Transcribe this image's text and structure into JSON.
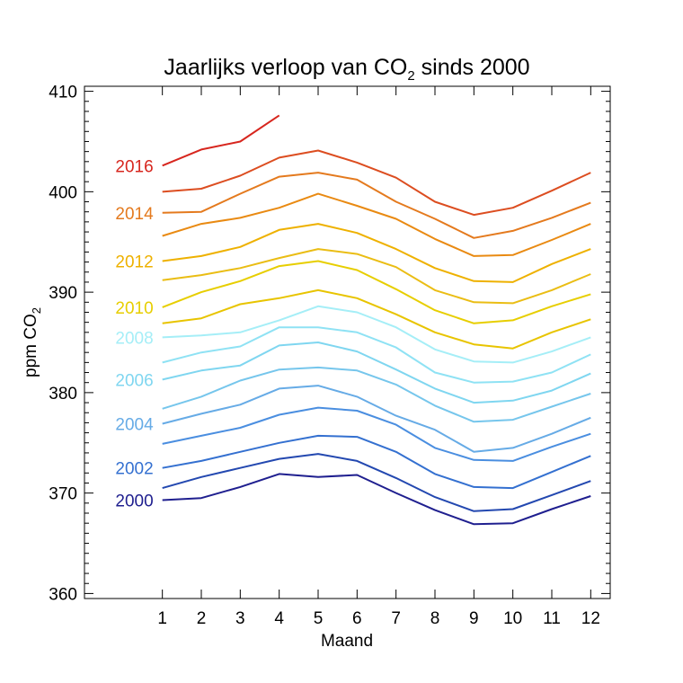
{
  "chart_data": {
    "type": "line",
    "title": "Jaarlijks verloop van CO",
    "title_subscript": "2",
    "title_suffix": " sinds 2000",
    "xlabel": "Maand",
    "ylabel": "ppm CO",
    "ylabel_subscript": "2",
    "x": [
      1,
      2,
      3,
      4,
      5,
      6,
      7,
      8,
      9,
      10,
      11,
      12
    ],
    "x_tick_labels": [
      "1",
      "2",
      "3",
      "4",
      "5",
      "6",
      "7",
      "8",
      "9",
      "10",
      "11",
      "12"
    ],
    "xlim": [
      -1,
      12.5
    ],
    "ylim": [
      359.5,
      410.5
    ],
    "y_ticks": [
      360,
      370,
      380,
      390,
      400,
      410
    ],
    "y_tick_labels": [
      "360",
      "370",
      "380",
      "390",
      "400",
      "410"
    ],
    "grid": false,
    "series": [
      {
        "name": "2000",
        "color": "#1f1f8f",
        "label_shown": true,
        "label": "2000",
        "values": [
          369.3,
          369.5,
          370.6,
          371.9,
          371.6,
          371.8,
          370.0,
          368.3,
          366.9,
          367.0,
          368.4,
          369.7
        ]
      },
      {
        "name": "2001",
        "color": "#2348b0",
        "label_shown": false,
        "values": [
          370.5,
          371.6,
          372.5,
          373.4,
          373.9,
          373.2,
          371.5,
          369.6,
          368.2,
          368.4,
          369.8,
          371.2
        ]
      },
      {
        "name": "2002",
        "color": "#3470d0",
        "label_shown": true,
        "label": "2002",
        "values": [
          372.5,
          373.2,
          374.1,
          375.0,
          375.7,
          375.6,
          374.1,
          371.9,
          370.6,
          370.5,
          372.1,
          373.7
        ]
      },
      {
        "name": "2003",
        "color": "#4a8ee0",
        "label_shown": false,
        "values": [
          374.9,
          375.7,
          376.5,
          377.8,
          378.5,
          378.2,
          376.8,
          374.5,
          373.3,
          373.2,
          374.6,
          375.9
        ]
      },
      {
        "name": "2004",
        "color": "#66abe6",
        "label_shown": true,
        "label": "2004",
        "values": [
          376.9,
          377.9,
          378.8,
          380.4,
          380.7,
          379.6,
          377.7,
          376.3,
          374.1,
          374.5,
          375.9,
          377.5
        ]
      },
      {
        "name": "2005",
        "color": "#76c6ec",
        "label_shown": false,
        "values": [
          378.4,
          379.6,
          381.2,
          382.3,
          382.5,
          382.2,
          380.8,
          378.7,
          377.1,
          377.3,
          378.6,
          379.9
        ]
      },
      {
        "name": "2006",
        "color": "#7fd6f0",
        "label_shown": true,
        "label": "2006",
        "values": [
          381.3,
          382.2,
          382.7,
          384.7,
          385.0,
          384.1,
          382.3,
          380.4,
          379.0,
          379.2,
          380.2,
          381.9
        ]
      },
      {
        "name": "2007",
        "color": "#8fe2f4",
        "label_shown": false,
        "values": [
          383.0,
          384.0,
          384.6,
          386.5,
          386.5,
          386.0,
          384.5,
          382.0,
          381.0,
          381.1,
          382.0,
          383.8
        ]
      },
      {
        "name": "2008",
        "color": "#a5eef7",
        "label_shown": true,
        "label": "2008",
        "values": [
          385.5,
          385.7,
          386.0,
          387.2,
          388.6,
          388.0,
          386.5,
          384.3,
          383.1,
          383.0,
          384.1,
          385.5
        ]
      },
      {
        "name": "2009",
        "color": "#e8c400",
        "label_shown": false,
        "values": [
          386.9,
          387.4,
          388.8,
          389.4,
          390.2,
          389.4,
          387.8,
          386.0,
          384.8,
          384.4,
          386.0,
          387.3
        ]
      },
      {
        "name": "2010",
        "color": "#e7ce00",
        "label_shown": true,
        "label": "2010",
        "values": [
          388.5,
          390.0,
          391.1,
          392.6,
          393.1,
          392.2,
          390.3,
          388.2,
          386.9,
          387.2,
          388.6,
          389.8
        ]
      },
      {
        "name": "2011",
        "color": "#eabd14",
        "label_shown": false,
        "values": [
          391.2,
          391.7,
          392.4,
          393.4,
          394.3,
          393.8,
          392.5,
          390.2,
          389.0,
          388.9,
          390.2,
          391.8
        ]
      },
      {
        "name": "2012",
        "color": "#eeb100",
        "label_shown": true,
        "label": "2012",
        "values": [
          393.1,
          393.6,
          394.5,
          396.2,
          396.8,
          395.9,
          394.3,
          392.4,
          391.1,
          391.0,
          392.8,
          394.3
        ]
      },
      {
        "name": "2013",
        "color": "#e98a12",
        "label_shown": false,
        "values": [
          395.6,
          396.8,
          397.4,
          398.4,
          399.8,
          398.6,
          397.3,
          395.3,
          393.6,
          393.7,
          395.2,
          396.8
        ]
      },
      {
        "name": "2014",
        "color": "#e47a1e",
        "label_shown": true,
        "label": "2014",
        "values": [
          397.9,
          398.0,
          399.8,
          401.5,
          401.9,
          401.2,
          399.0,
          397.3,
          395.4,
          396.1,
          397.4,
          398.9
        ]
      },
      {
        "name": "2015",
        "color": "#dc4d20",
        "label_shown": false,
        "values": [
          400.0,
          400.3,
          401.6,
          403.4,
          404.1,
          402.9,
          401.4,
          399.0,
          397.7,
          398.4,
          400.1,
          401.9
        ]
      },
      {
        "name": "2016",
        "color": "#d7261e",
        "label_shown": true,
        "label": "2016",
        "values": [
          402.6,
          404.2,
          405.0,
          407.6,
          null,
          null,
          null,
          null,
          null,
          null,
          null,
          null
        ]
      }
    ]
  }
}
